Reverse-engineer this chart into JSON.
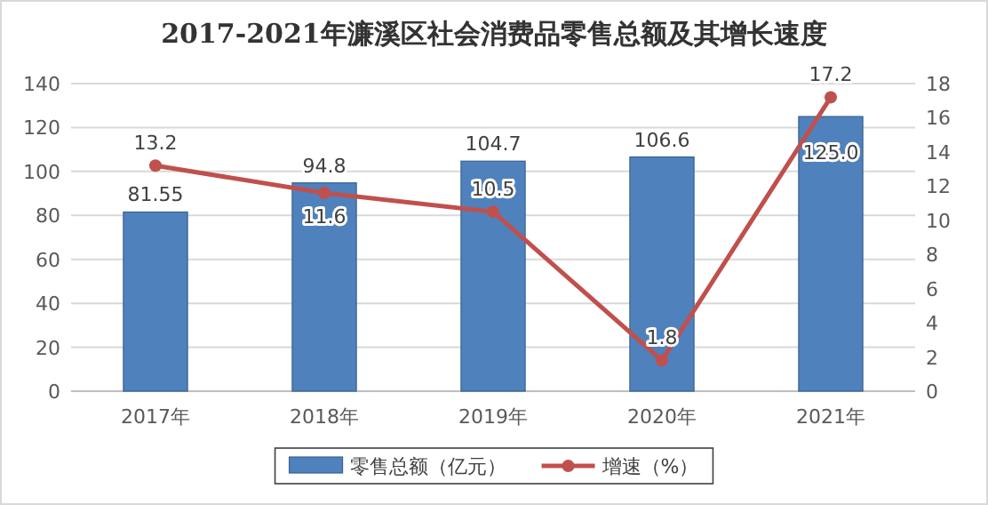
{
  "chart_data": {
    "type": "bar",
    "title": "2017-2021年濂溪区社会消费品零售总额及其增长速度",
    "categories": [
      "2017年",
      "2018年",
      "2019年",
      "2020年",
      "2021年"
    ],
    "series": [
      {
        "name": "零售总额（亿元）",
        "color": "#4f81bd",
        "values": [
          81.55,
          94.8,
          104.7,
          106.6,
          125.0
        ],
        "value_labels": [
          "81.55",
          "94.8",
          "104.7",
          "106.6",
          "125.0"
        ]
      },
      {
        "name": "增速（%）",
        "type": "line",
        "axis": "y2",
        "color": "#c0504d",
        "marker": "circle",
        "values": [
          13.2,
          11.6,
          10.5,
          1.8,
          17.2
        ],
        "value_labels": [
          "13.2",
          "11.6",
          "10.5",
          "1.8",
          "17.2"
        ]
      }
    ],
    "ylim": [
      0,
      140
    ],
    "yticks": [
      0,
      20,
      40,
      60,
      80,
      100,
      120,
      140
    ],
    "y2lim": [
      0,
      18
    ],
    "y2ticks": [
      0,
      2,
      4,
      6,
      8,
      10,
      12,
      14,
      16,
      18
    ],
    "grid": "y",
    "legend": "bottom"
  }
}
